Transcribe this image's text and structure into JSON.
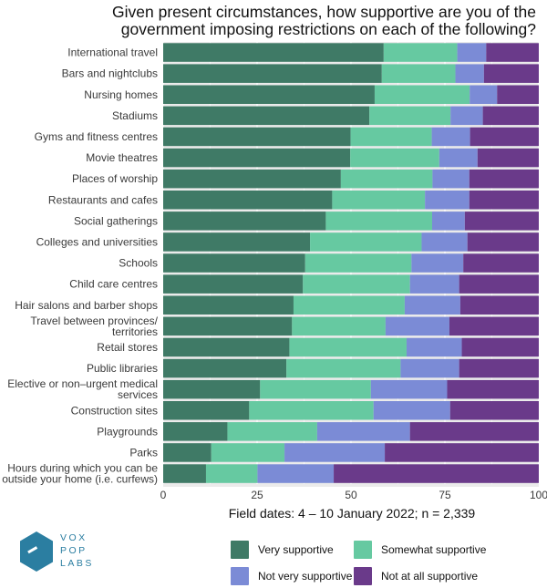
{
  "title_lines": [
    "Given present circumstances, how supportive are you of the",
    "government imposing restrictions on each of the following?"
  ],
  "caption": "Field dates: 4 – 10 January 2022; n = 2,339",
  "logo": {
    "line1": "VOX",
    "line2": "POP",
    "line3": "LABS",
    "color": "#2b7ea1"
  },
  "legend": [
    {
      "label": "Very supportive",
      "color": "#3f7a66"
    },
    {
      "label": "Somewhat supportive",
      "color": "#66c9a1"
    },
    {
      "label": "Not very supportive",
      "color": "#7b8bd6"
    },
    {
      "label": "Not at all supportive",
      "color": "#6a3a8a"
    }
  ],
  "chart_data": {
    "type": "bar",
    "orientation": "horizontal",
    "stacked": true,
    "title": "Given present circumstances, how supportive are you of the government imposing restrictions on each of the following?",
    "xlim": [
      0,
      100
    ],
    "x_ticks": [
      0,
      25,
      50,
      75,
      100
    ],
    "grid": true,
    "legend_position": "bottom",
    "categories": [
      "International travel",
      "Bars and nightclubs",
      "Nursing homes",
      "Stadiums",
      "Gyms and fitness centres",
      "Movie theatres",
      "Places of worship",
      "Restaurants and cafes",
      "Social gatherings",
      "Colleges and universities",
      "Schools",
      "Child care centres",
      "Hair salons and barber shops",
      "Travel between provinces/ territories",
      "Retail stores",
      "Public libraries",
      "Elective or non–urgent medical services",
      "Construction sites",
      "Playgrounds",
      "Parks",
      "Hours during which you can be outside your home (i.e. curfews)"
    ],
    "category_lines": [
      [
        "International travel"
      ],
      [
        "Bars and nightclubs"
      ],
      [
        "Nursing homes"
      ],
      [
        "Stadiums"
      ],
      [
        "Gyms and fitness centres"
      ],
      [
        "Movie theatres"
      ],
      [
        "Places of worship"
      ],
      [
        "Restaurants and cafes"
      ],
      [
        "Social gatherings"
      ],
      [
        "Colleges and universities"
      ],
      [
        "Schools"
      ],
      [
        "Child care centres"
      ],
      [
        "Hair salons and barber shops"
      ],
      [
        "Travel between provinces/",
        "territories"
      ],
      [
        "Retail stores"
      ],
      [
        "Public libraries"
      ],
      [
        "Elective or non–urgent medical",
        "services"
      ],
      [
        "Construction sites"
      ],
      [
        "Playgrounds"
      ],
      [
        "Parks"
      ],
      [
        "Hours during which you can be",
        "outside your home (i.e. curfews)"
      ]
    ],
    "series": [
      {
        "name": "Very supportive",
        "color": "#3f7a66",
        "values": [
          58.7,
          58.2,
          56.3,
          54.9,
          49.9,
          49.8,
          47.3,
          45.0,
          43.3,
          39.1,
          37.8,
          37.2,
          34.7,
          34.3,
          33.6,
          32.8,
          25.8,
          22.9,
          17.1,
          12.8,
          11.4
        ]
      },
      {
        "name": "Somewhat supportive",
        "color": "#66c9a1",
        "values": [
          19.6,
          19.6,
          25.3,
          21.6,
          21.6,
          23.7,
          24.4,
          24.7,
          28.3,
          29.7,
          28.3,
          28.5,
          29.6,
          24.9,
          31.2,
          30.4,
          29.5,
          33.1,
          23.9,
          19.5,
          13.7
        ]
      },
      {
        "name": "Not very supportive",
        "color": "#7b8bd6",
        "values": [
          7.7,
          7.6,
          7.3,
          8.6,
          10.2,
          10.2,
          9.8,
          11.8,
          8.7,
          12.2,
          13.8,
          13.1,
          14.8,
          17.0,
          14.7,
          15.6,
          20.3,
          20.4,
          24.7,
          26.7,
          20.3
        ]
      },
      {
        "name": "Not at all supportive",
        "color": "#6a3a8a",
        "values": [
          14.0,
          14.6,
          11.1,
          14.9,
          18.3,
          16.3,
          18.5,
          18.5,
          19.7,
          19.0,
          20.1,
          21.2,
          20.9,
          23.8,
          20.5,
          21.2,
          24.4,
          23.6,
          34.3,
          41.0,
          54.6
        ]
      }
    ]
  }
}
